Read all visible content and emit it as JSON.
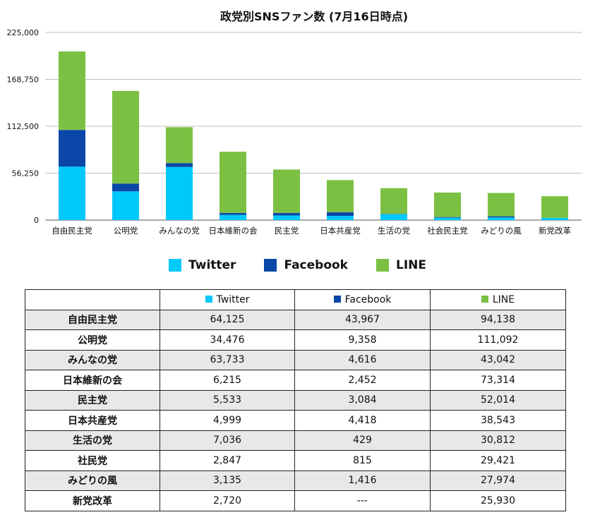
{
  "colors": {
    "twitter": "#00c8f8",
    "facebook": "#0a47a8",
    "line": "#7cc043",
    "grid": "#bfbfbf"
  },
  "chart_data": {
    "type": "bar",
    "stacked": true,
    "title": "政党別SNSファン数 (7月16日時点)",
    "xlabel": "",
    "ylabel": "",
    "ylim": [
      0,
      225000
    ],
    "yticks": [
      "0",
      "56,250",
      "112,500",
      "168,750",
      "225,000"
    ],
    "ytick_values": [
      0,
      56250,
      112500,
      168750,
      225000
    ],
    "grid": true,
    "legend_position": "bottom",
    "categories": [
      "自由民主党",
      "公明党",
      "みんなの党",
      "日本維新の会",
      "民主党",
      "日本共産党",
      "生活の党",
      "社会民主党",
      "みどりの風",
      "新党改革"
    ],
    "series": [
      {
        "name": "Twitter",
        "values": [
          64125,
          34476,
          63733,
          6215,
          5533,
          4999,
          7036,
          2847,
          3135,
          2720
        ]
      },
      {
        "name": "Facebook",
        "values": [
          43967,
          9358,
          4616,
          2452,
          3084,
          4418,
          429,
          815,
          1416,
          0
        ]
      },
      {
        "name": "LINE",
        "values": [
          94138,
          111092,
          43042,
          73314,
          52014,
          38543,
          30812,
          29421,
          27974,
          25930
        ]
      }
    ]
  },
  "legend": {
    "twitter": "Twitter",
    "facebook": "Facebook",
    "line": "LINE"
  },
  "table": {
    "headers": [
      "",
      "Twitter",
      "Facebook",
      "LINE"
    ],
    "rows": [
      [
        "自由民主党",
        "64,125",
        "43,967",
        "94,138"
      ],
      [
        "公明党",
        "34,476",
        "9,358",
        "111,092"
      ],
      [
        "みんなの党",
        "63,733",
        "4,616",
        "43,042"
      ],
      [
        "日本維新の会",
        "6,215",
        "2,452",
        "73,314"
      ],
      [
        "民主党",
        "5,533",
        "3,084",
        "52,014"
      ],
      [
        "日本共産党",
        "4,999",
        "4,418",
        "38,543"
      ],
      [
        "生活の党",
        "7,036",
        "429",
        "30,812"
      ],
      [
        "社民党",
        "2,847",
        "815",
        "29,421"
      ],
      [
        "みどりの風",
        "3,135",
        "1,416",
        "27,974"
      ],
      [
        "新党改革",
        "2,720",
        "---",
        "25,930"
      ]
    ]
  }
}
